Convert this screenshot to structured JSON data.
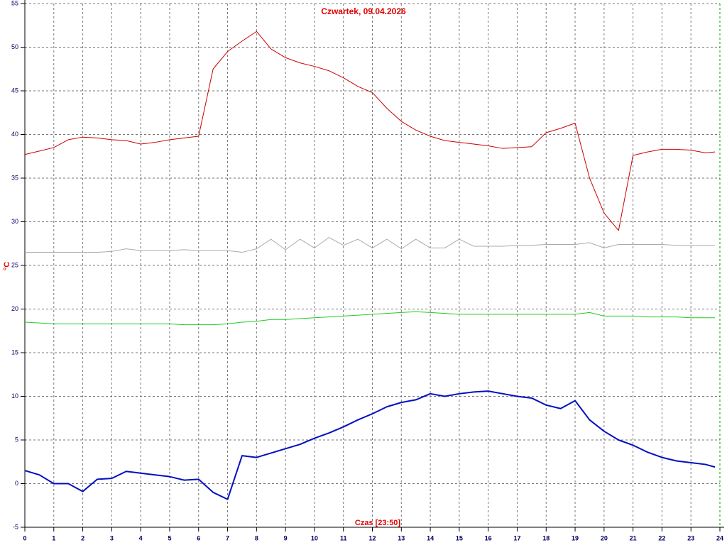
{
  "chart_data": {
    "type": "line",
    "title": "Czwartek, 09.04.2026",
    "ylabel": "°C",
    "xlabel": "Czas [23:50]",
    "x": [
      0,
      0.5,
      1,
      1.5,
      2,
      2.5,
      3,
      3.5,
      4,
      4.5,
      5,
      5.5,
      6,
      6.5,
      7,
      7.5,
      8,
      8.5,
      9,
      9.5,
      10,
      10.5,
      11,
      11.5,
      12,
      12.5,
      13,
      13.5,
      14,
      14.5,
      15,
      15.5,
      16,
      16.5,
      17,
      17.5,
      18,
      18.5,
      19,
      19.5,
      20,
      20.5,
      21,
      21.5,
      22,
      22.5,
      23,
      23.5,
      23.83
    ],
    "series": [
      {
        "name": "red",
        "color": "#cc0000",
        "width": 1,
        "values": [
          37.7,
          38.1,
          38.5,
          39.4,
          39.7,
          39.6,
          39.4,
          39.3,
          38.9,
          39.1,
          39.4,
          39.6,
          39.8,
          47.5,
          49.5,
          50.7,
          51.8,
          49.8,
          48.8,
          48.2,
          47.8,
          47.3,
          46.5,
          45.5,
          44.8,
          43.0,
          41.5,
          40.5,
          39.8,
          39.3,
          39.1,
          38.9,
          38.7,
          38.4,
          38.5,
          38.6,
          40.2,
          40.7,
          41.3,
          35.0,
          31.0,
          29.0,
          37.6,
          38.0,
          38.3,
          38.3,
          38.2,
          37.9,
          38.0
        ]
      },
      {
        "name": "gray",
        "color": "#aaaaaa",
        "width": 1,
        "values": [
          26.5,
          26.5,
          26.5,
          26.5,
          26.5,
          26.5,
          26.6,
          26.9,
          26.7,
          26.7,
          26.7,
          26.8,
          26.7,
          26.7,
          26.7,
          26.5,
          26.9,
          28.0,
          26.8,
          28.0,
          27.0,
          28.2,
          27.3,
          28.0,
          27.0,
          28.0,
          26.9,
          28.0,
          27.0,
          27.0,
          28.0,
          27.2,
          27.2,
          27.2,
          27.3,
          27.3,
          27.4,
          27.4,
          27.4,
          27.6,
          27.0,
          27.4,
          27.4,
          27.4,
          27.4,
          27.3,
          27.3,
          27.3,
          27.3
        ]
      },
      {
        "name": "green",
        "color": "#22cc22",
        "width": 1,
        "values": [
          18.5,
          18.4,
          18.3,
          18.3,
          18.3,
          18.3,
          18.3,
          18.3,
          18.3,
          18.3,
          18.3,
          18.2,
          18.2,
          18.2,
          18.3,
          18.5,
          18.6,
          18.8,
          18.8,
          18.9,
          19.0,
          19.1,
          19.2,
          19.3,
          19.4,
          19.5,
          19.6,
          19.7,
          19.6,
          19.5,
          19.4,
          19.4,
          19.4,
          19.4,
          19.4,
          19.4,
          19.4,
          19.4,
          19.4,
          19.6,
          19.2,
          19.2,
          19.2,
          19.1,
          19.1,
          19.1,
          19.0,
          19.0,
          19.0
        ]
      },
      {
        "name": "blue",
        "color": "#0010c0",
        "width": 2,
        "values": [
          1.5,
          1.0,
          0.0,
          0.0,
          -0.9,
          0.5,
          0.6,
          1.4,
          1.2,
          1.0,
          0.8,
          0.4,
          0.5,
          -1.0,
          -1.8,
          3.2,
          3.0,
          3.5,
          4.0,
          4.5,
          5.2,
          5.8,
          6.5,
          7.3,
          8.0,
          8.8,
          9.3,
          9.6,
          10.3,
          10.0,
          10.3,
          10.5,
          10.6,
          10.3,
          10.0,
          9.8,
          9.0,
          8.6,
          9.5,
          7.3,
          6.0,
          5.0,
          4.4,
          3.6,
          3.0,
          2.6,
          2.4,
          2.2,
          1.9
        ]
      }
    ],
    "xlim": [
      0,
      24
    ],
    "xticks": [
      0,
      1,
      2,
      3,
      4,
      5,
      6,
      7,
      8,
      9,
      10,
      11,
      12,
      13,
      14,
      15,
      16,
      17,
      18,
      19,
      20,
      21,
      22,
      23,
      24
    ],
    "ylim": [
      -5,
      55
    ],
    "yticks": [
      -5,
      0,
      5,
      10,
      15,
      20,
      25,
      30,
      35,
      40,
      45,
      50,
      55
    ],
    "grid": true
  }
}
